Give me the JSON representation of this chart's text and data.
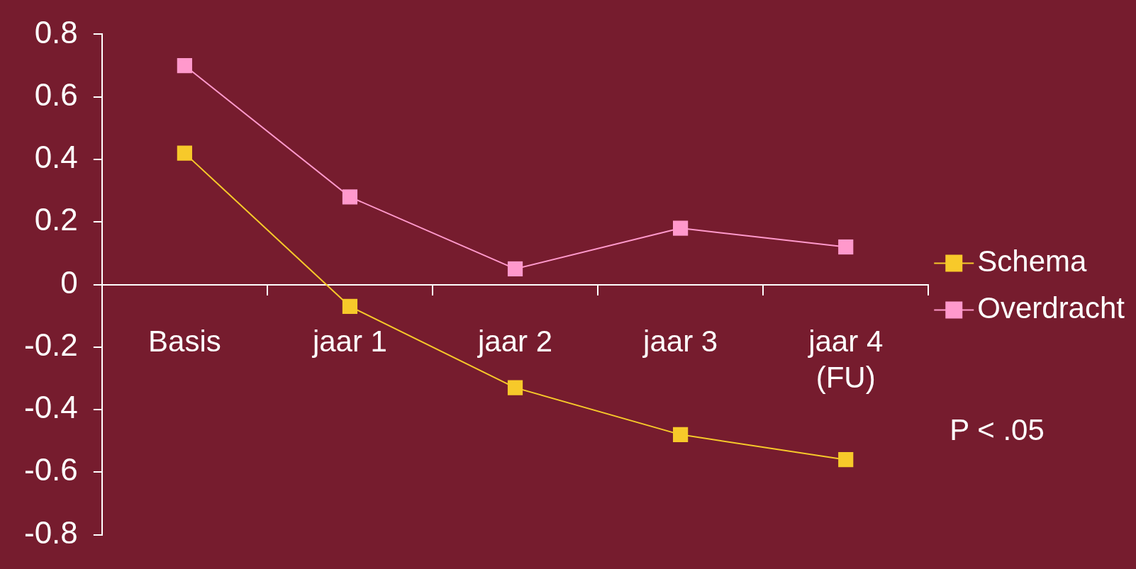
{
  "chart_data": {
    "type": "line",
    "categories": [
      "Basis",
      "jaar 1",
      "jaar 2",
      "jaar 3",
      "jaar 4\n(FU)"
    ],
    "series": [
      {
        "name": "Schema",
        "color": "#f7c92a",
        "values": [
          0.42,
          -0.07,
          -0.33,
          -0.48,
          -0.56
        ]
      },
      {
        "name": "Overdracht",
        "color": "#ff99cc",
        "values": [
          0.7,
          0.28,
          0.05,
          0.18,
          0.12
        ]
      }
    ],
    "ylim": [
      -0.8,
      0.8
    ],
    "yticks": [
      -0.8,
      -0.6,
      -0.4,
      -0.2,
      0,
      0.2,
      0.4,
      0.6,
      0.8
    ],
    "marker": "square",
    "line_style": "solid",
    "legend": "right",
    "annotations": [
      "P < .05"
    ]
  }
}
